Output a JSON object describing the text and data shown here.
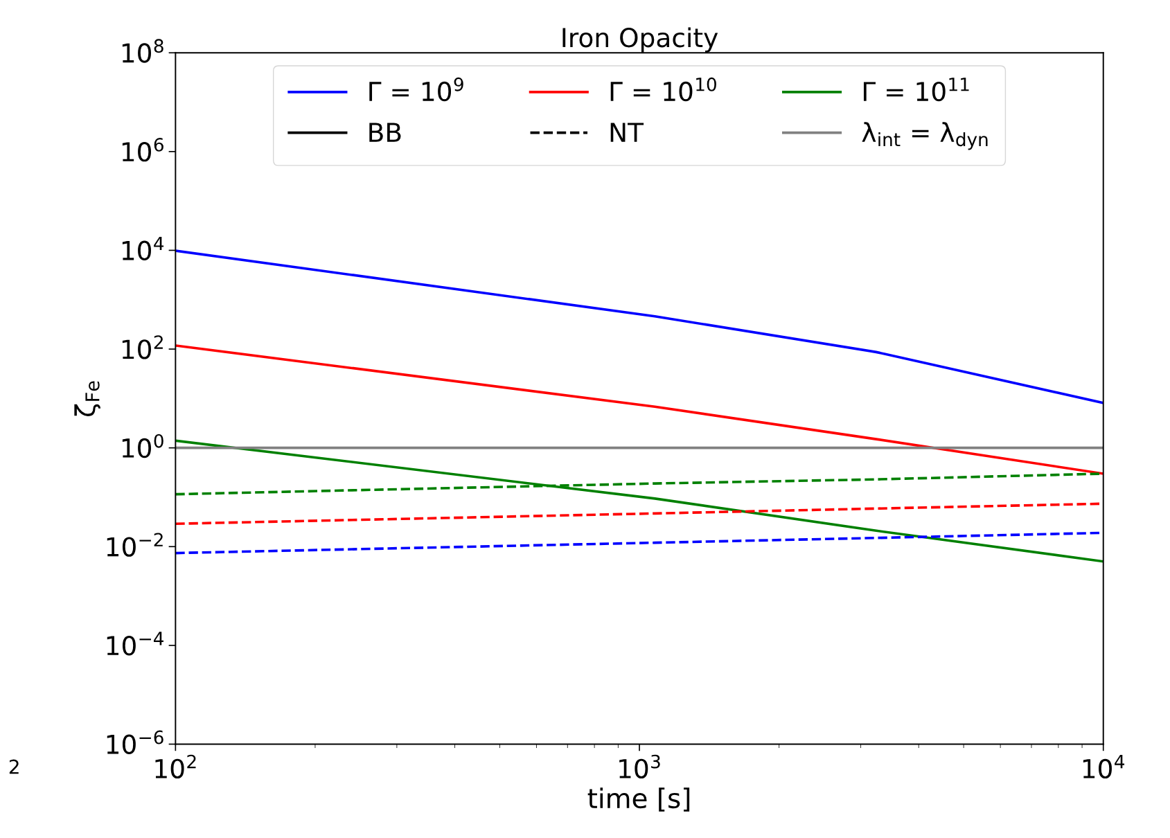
{
  "chart_data": {
    "type": "line",
    "title": "Iron Opacity",
    "xlabel": "time [s]",
    "ylabel": "ζ$_{Fe}$",
    "x": [
      100,
      1080,
      3240,
      10000
    ],
    "series": [
      {
        "name": "Γ = 10$^{9}$",
        "color": "#0000ff",
        "values": [
          9800,
          460,
          87,
          8.1
        ],
        "line_style": "solid"
      },
      {
        "name": "Γ = 10$^{10}$",
        "color": "#ff0000",
        "values": [
          118,
          6.8,
          1.5,
          0.3
        ],
        "line_style": "solid"
      },
      {
        "name": "Γ = 10$^{11}$",
        "color": "#008000",
        "values": [
          1.4,
          0.094,
          0.021,
          0.005
        ],
        "line_style": "solid"
      },
      {
        "name": "BB",
        "color": "#000000",
        "values": [
          null,
          null,
          null,
          null
        ],
        "line_style": "solid"
      },
      {
        "color": "#0000ff",
        "values": [
          0.0074,
          0.012,
          0.015,
          0.019
        ],
        "line_style": "dashed"
      },
      {
        "color": "#ff0000",
        "values": [
          0.029,
          0.047,
          0.059,
          0.074
        ],
        "line_style": "dashed"
      },
      {
        "name": "NT",
        "color": "#000000",
        "values": [
          null,
          null,
          null,
          null
        ],
        "line_style": "dashed"
      },
      {
        "color": "#008000",
        "values": [
          0.115,
          0.19,
          0.23,
          0.3
        ],
        "line_style": "dashed"
      }
    ],
    "ref_lines": [
      {
        "axis": "y",
        "value": 1,
        "label": "λ$_{int}$ = λ$_{dyn}$",
        "color": "#808080",
        "line_style": "solid"
      }
    ],
    "log": "xy",
    "xlim": [
      100,
      10000
    ],
    "ylim": [
      1e-06,
      100000000.0
    ],
    "xticks": [
      {
        "value": 100,
        "label": "10$^{2}$"
      },
      {
        "value": 1000,
        "label": "10$^{3}$"
      },
      {
        "value": 10000,
        "label": "10$^{4}$"
      }
    ],
    "yticks": [
      {
        "value": 1e-06,
        "label": "10$^{−6}$"
      },
      {
        "value": 0.0001,
        "label": "10$^{−4}$"
      },
      {
        "value": 0.01,
        "label": "10$^{−2}$"
      },
      {
        "value": 1,
        "label": "10$^{0}$"
      },
      {
        "value": 100,
        "label": "10$^{2}$"
      },
      {
        "value": 10000,
        "label": "10$^{4}$"
      },
      {
        "value": 1000000.0,
        "label": "10$^{6}$"
      },
      {
        "value": 100000000.0,
        "label": "10$^{8}$"
      }
    ],
    "legend": "top",
    "grid": false,
    "annotations": [
      "2"
    ]
  }
}
